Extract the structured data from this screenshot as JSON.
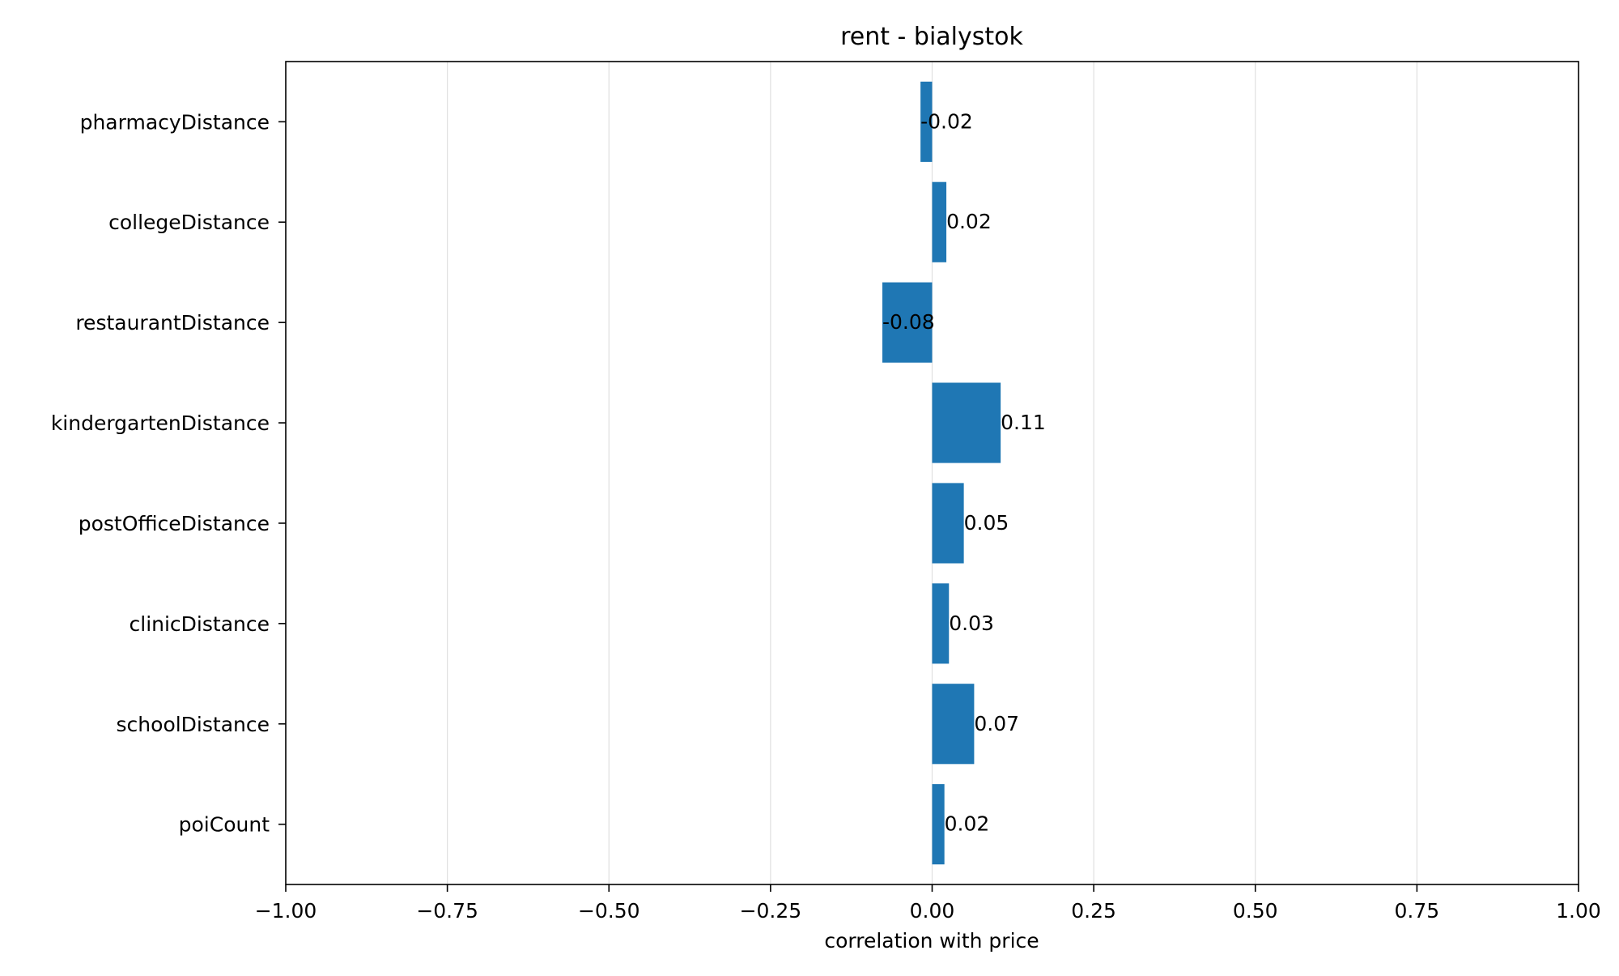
{
  "chart_data": {
    "type": "bar",
    "orientation": "horizontal",
    "title": "rent - bialystok",
    "xlabel": "correlation with price",
    "ylabel": "",
    "xlim": [
      -1.0,
      1.0
    ],
    "x_ticks": [
      -1.0,
      -0.75,
      -0.5,
      -0.25,
      0.0,
      0.25,
      0.5,
      0.75,
      1.0
    ],
    "x_tick_labels": [
      "−1.00",
      "−0.75",
      "−0.50",
      "−0.25",
      "0.00",
      "0.25",
      "0.50",
      "0.75",
      "1.00"
    ],
    "grid": "vertical",
    "bar_color": "#1f77b4",
    "grid_color": "#e0e0e0",
    "categories": [
      "pharmacyDistance",
      "collegeDistance",
      "restaurantDistance",
      "kindergartenDistance",
      "postOfficeDistance",
      "clinicDistance",
      "schoolDistance",
      "poiCount"
    ],
    "values": [
      -0.018,
      0.022,
      -0.077,
      0.106,
      0.049,
      0.026,
      0.065,
      0.019
    ],
    "data_labels": [
      "-0.02",
      "0.02",
      "-0.08",
      "0.11",
      "0.05",
      "0.03",
      "0.07",
      "0.02"
    ]
  }
}
